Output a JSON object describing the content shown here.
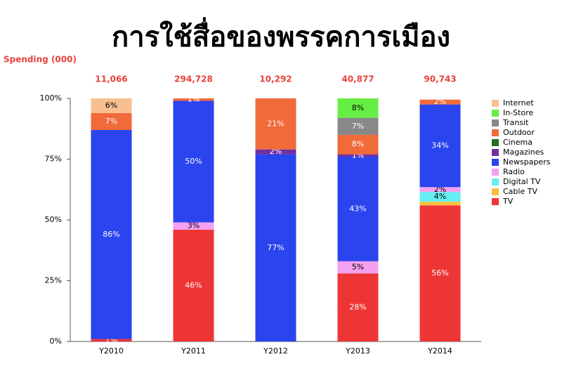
{
  "chart_data": {
    "type": "stacked_bar_100",
    "title": "การใช้สื่อของพรรคการเมือง",
    "totals_label": "Spending (000)",
    "categories": [
      "Y2010",
      "Y2011",
      "Y2012",
      "Y2013",
      "Y2014"
    ],
    "totals": [
      11066,
      294728,
      10292,
      40877,
      90743
    ],
    "total_labels": [
      "11,066",
      "294,728",
      "10,292",
      "40,877",
      "90,743"
    ],
    "ylim": [
      0,
      100
    ],
    "yticks": [
      {
        "value": 0,
        "label": "0%"
      },
      {
        "value": 25,
        "label": "25%"
      },
      {
        "value": 50,
        "label": "50%"
      },
      {
        "value": 75,
        "label": "75%"
      },
      {
        "value": 100,
        "label": "100%"
      }
    ],
    "series": [
      {
        "name": "TV",
        "color": "#ee3535",
        "values": [
          1,
          46,
          null,
          28,
          56
        ],
        "value_labels": [
          "1%",
          "46%",
          null,
          "28%",
          "56%"
        ]
      },
      {
        "name": "Cable TV",
        "color": "#f8c040",
        "values": [
          null,
          null,
          null,
          null,
          1.5
        ],
        "value_labels": [
          null,
          null,
          null,
          null,
          null
        ]
      },
      {
        "name": "Digital TV",
        "color": "#66eef0",
        "values": [
          null,
          null,
          null,
          null,
          4
        ],
        "value_labels": [
          null,
          null,
          null,
          null,
          "4%"
        ]
      },
      {
        "name": "Radio",
        "color": "#f4a0f0",
        "values": [
          null,
          3,
          null,
          5,
          2
        ],
        "value_labels": [
          null,
          "3%",
          null,
          "5%",
          "2%"
        ]
      },
      {
        "name": "Newspapers",
        "color": "#2a44ee",
        "values": [
          86,
          50,
          77,
          43,
          34
        ],
        "value_labels": [
          "86%",
          "50%",
          "77%",
          "43%",
          "34%"
        ]
      },
      {
        "name": "Magazines",
        "color": "#7030a0",
        "values": [
          null,
          null,
          2,
          1,
          null
        ],
        "value_labels": [
          null,
          null,
          "2%",
          "1%",
          null
        ]
      },
      {
        "name": "Cinema",
        "color": "#207020",
        "values": [
          null,
          null,
          null,
          null,
          null
        ],
        "value_labels": [
          null,
          null,
          null,
          null,
          null
        ]
      },
      {
        "name": "Outdoor",
        "color": "#f06a3a",
        "values": [
          7,
          1,
          21,
          8,
          2
        ],
        "value_labels": [
          "7%",
          "1%",
          "21%",
          "8%",
          "2%"
        ]
      },
      {
        "name": "Transit",
        "color": "#888888",
        "values": [
          null,
          null,
          null,
          7,
          null
        ],
        "value_labels": [
          null,
          null,
          null,
          "7%",
          null
        ]
      },
      {
        "name": "In-Store",
        "color": "#66ee44",
        "values": [
          null,
          null,
          null,
          8,
          null
        ],
        "value_labels": [
          null,
          null,
          null,
          "8%",
          null
        ]
      },
      {
        "name": "Internet",
        "color": "#f8c090",
        "values": [
          6,
          null,
          null,
          null,
          null
        ],
        "value_labels": [
          "6%",
          null,
          null,
          null,
          null
        ]
      }
    ]
  }
}
